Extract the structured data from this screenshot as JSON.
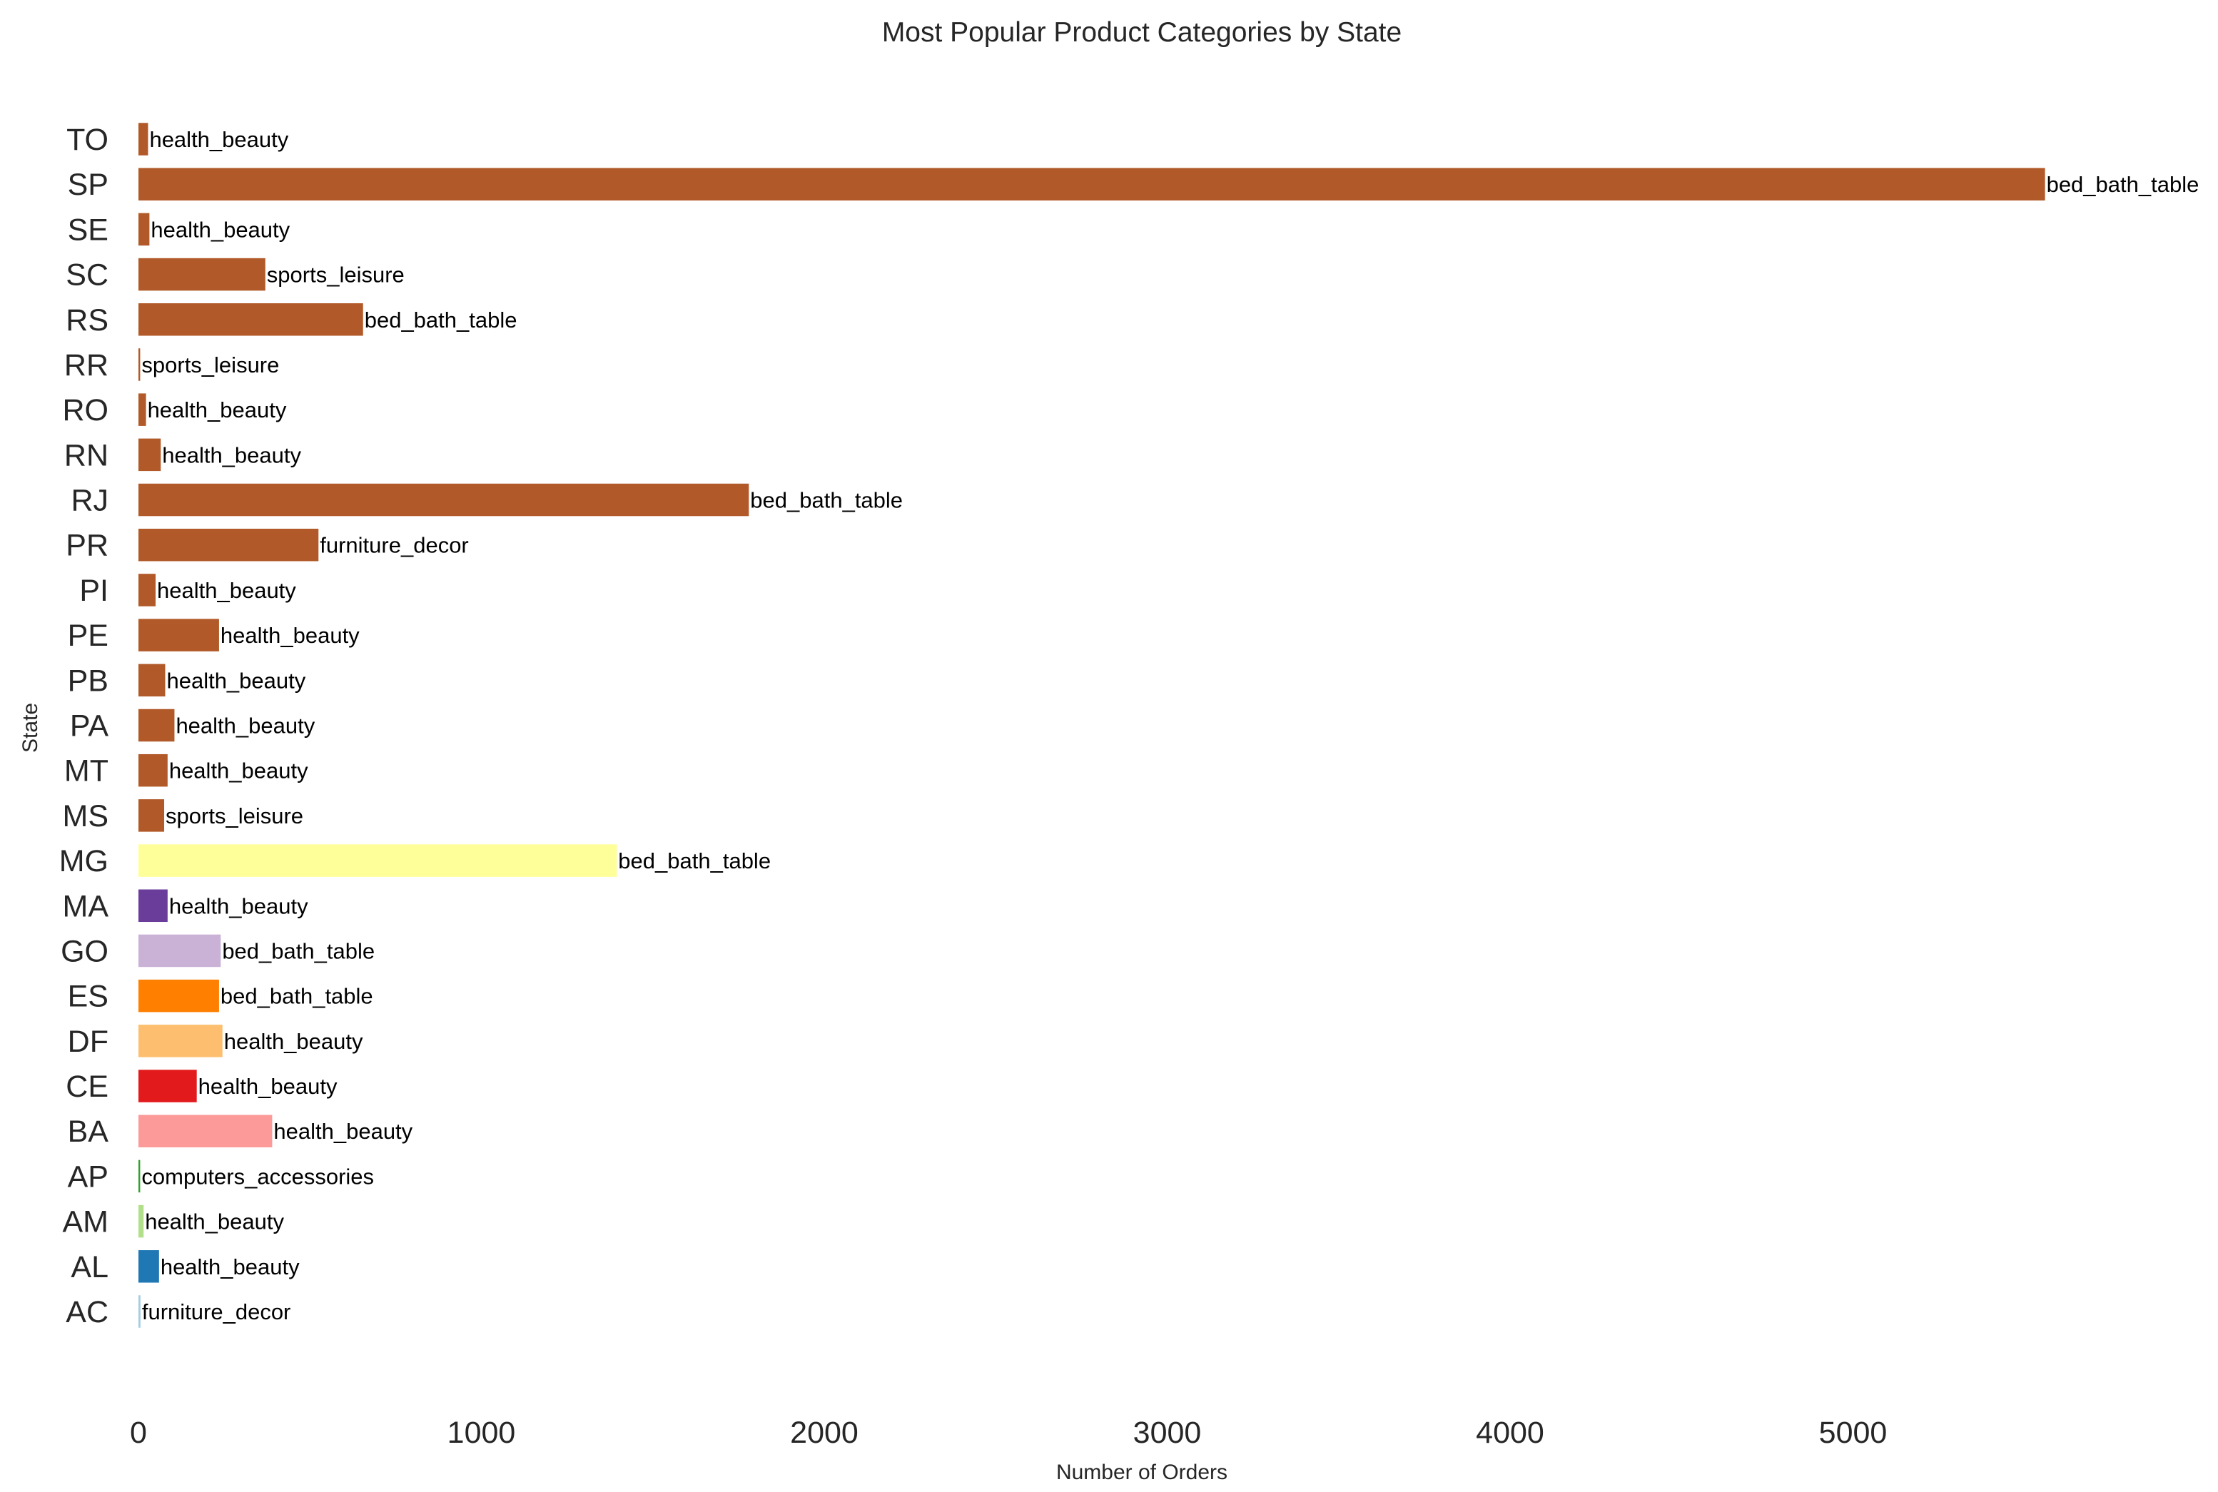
{
  "chart_data": {
    "type": "bar",
    "orientation": "horizontal",
    "title": "Most Popular Product Categories by State",
    "xlabel": "Number of Orders",
    "ylabel": "State",
    "xlim": [
      0,
      6050
    ],
    "xticks": [
      0,
      1000,
      2000,
      3000,
      4000,
      5000
    ],
    "grid": false,
    "legend": "none",
    "categories": [
      "TO",
      "SP",
      "SE",
      "SC",
      "RS",
      "RR",
      "RO",
      "RN",
      "RJ",
      "PR",
      "PI",
      "PE",
      "PB",
      "PA",
      "MT",
      "MS",
      "MG",
      "MA",
      "GO",
      "ES",
      "DF",
      "CE",
      "BA",
      "AP",
      "AM",
      "AL",
      "AC"
    ],
    "values": [
      28,
      5560,
      32,
      370,
      655,
      5,
      22,
      65,
      1780,
      525,
      50,
      235,
      78,
      105,
      85,
      75,
      1395,
      85,
      240,
      235,
      245,
      170,
      390,
      5,
      15,
      60,
      6
    ],
    "bar_labels": [
      "health_beauty",
      "bed_bath_table",
      "health_beauty",
      "sports_leisure",
      "bed_bath_table",
      "sports_leisure",
      "health_beauty",
      "health_beauty",
      "bed_bath_table",
      "furniture_decor",
      "health_beauty",
      "health_beauty",
      "health_beauty",
      "health_beauty",
      "health_beauty",
      "sports_leisure",
      "bed_bath_table",
      "health_beauty",
      "bed_bath_table",
      "bed_bath_table",
      "health_beauty",
      "health_beauty",
      "health_beauty",
      "computers_accessories",
      "health_beauty",
      "health_beauty",
      "furniture_decor"
    ],
    "colors": [
      "#b15928",
      "#b15928",
      "#b15928",
      "#b15928",
      "#b15928",
      "#b15928",
      "#b15928",
      "#b15928",
      "#b15928",
      "#b15928",
      "#b15928",
      "#b15928",
      "#b15928",
      "#b15928",
      "#b15928",
      "#b15928",
      "#ffff99",
      "#6a3d9a",
      "#cab2d6",
      "#ff7f00",
      "#fdbf6f",
      "#e31a1c",
      "#fb9a99",
      "#33a02c",
      "#b2df8a",
      "#1f78b4",
      "#a6cee3"
    ]
  }
}
